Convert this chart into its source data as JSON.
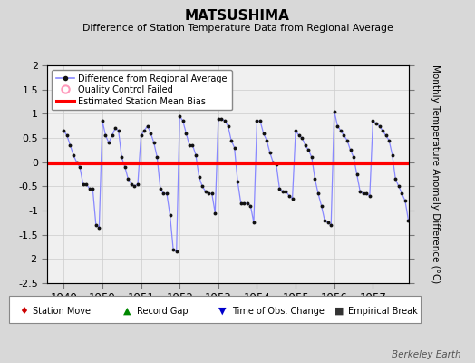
{
  "title": "MATSUSHIMA",
  "subtitle": "Difference of Station Temperature Data from Regional Average",
  "ylabel": "Monthly Temperature Anomaly Difference (°C)",
  "bias": -0.03,
  "xlim": [
    1948.58,
    1957.92
  ],
  "ylim": [
    -2.5,
    2.0
  ],
  "yticks": [
    -2.5,
    -2.0,
    -1.5,
    -1.0,
    -0.5,
    0.0,
    0.5,
    1.0,
    1.5,
    2.0
  ],
  "xticks": [
    1949,
    1950,
    1951,
    1952,
    1953,
    1954,
    1955,
    1956,
    1957
  ],
  "bg_color": "#d8d8d8",
  "plot_bg_color": "#f0f0f0",
  "line_color": "#8888ff",
  "marker_color": "#111111",
  "bias_color": "#ff0000",
  "watermark": "Berkeley Earth",
  "monthly_data": [
    0.65,
    0.55,
    0.35,
    0.15,
    0.0,
    -0.1,
    -0.45,
    -0.45,
    -0.55,
    -0.55,
    -1.3,
    -1.35,
    0.85,
    0.55,
    0.4,
    0.55,
    0.7,
    0.65,
    0.1,
    -0.1,
    -0.35,
    -0.45,
    -0.5,
    -0.45,
    0.55,
    0.65,
    0.75,
    0.6,
    0.4,
    0.1,
    -0.55,
    -0.65,
    -0.65,
    -1.1,
    -1.8,
    -1.85,
    0.95,
    0.85,
    0.6,
    0.35,
    0.35,
    0.15,
    -0.3,
    -0.5,
    -0.6,
    -0.65,
    -0.65,
    -1.05,
    0.9,
    0.9,
    0.85,
    0.75,
    0.45,
    0.3,
    -0.4,
    -0.85,
    -0.85,
    -0.85,
    -0.9,
    -1.25,
    0.85,
    0.85,
    0.6,
    0.45,
    0.2,
    0.0,
    -0.05,
    -0.55,
    -0.6,
    -0.6,
    -0.7,
    -0.75,
    0.65,
    0.55,
    0.5,
    0.35,
    0.25,
    0.1,
    -0.35,
    -0.65,
    -0.9,
    -1.2,
    -1.25,
    -1.3,
    1.05,
    0.75,
    0.65,
    0.55,
    0.45,
    0.25,
    0.1,
    -0.25,
    -0.6,
    -0.65,
    -0.65,
    -0.7,
    0.85,
    0.8,
    0.75,
    0.65,
    0.55,
    0.45,
    0.15,
    -0.35,
    -0.5,
    -0.65,
    -0.8,
    -1.2
  ]
}
